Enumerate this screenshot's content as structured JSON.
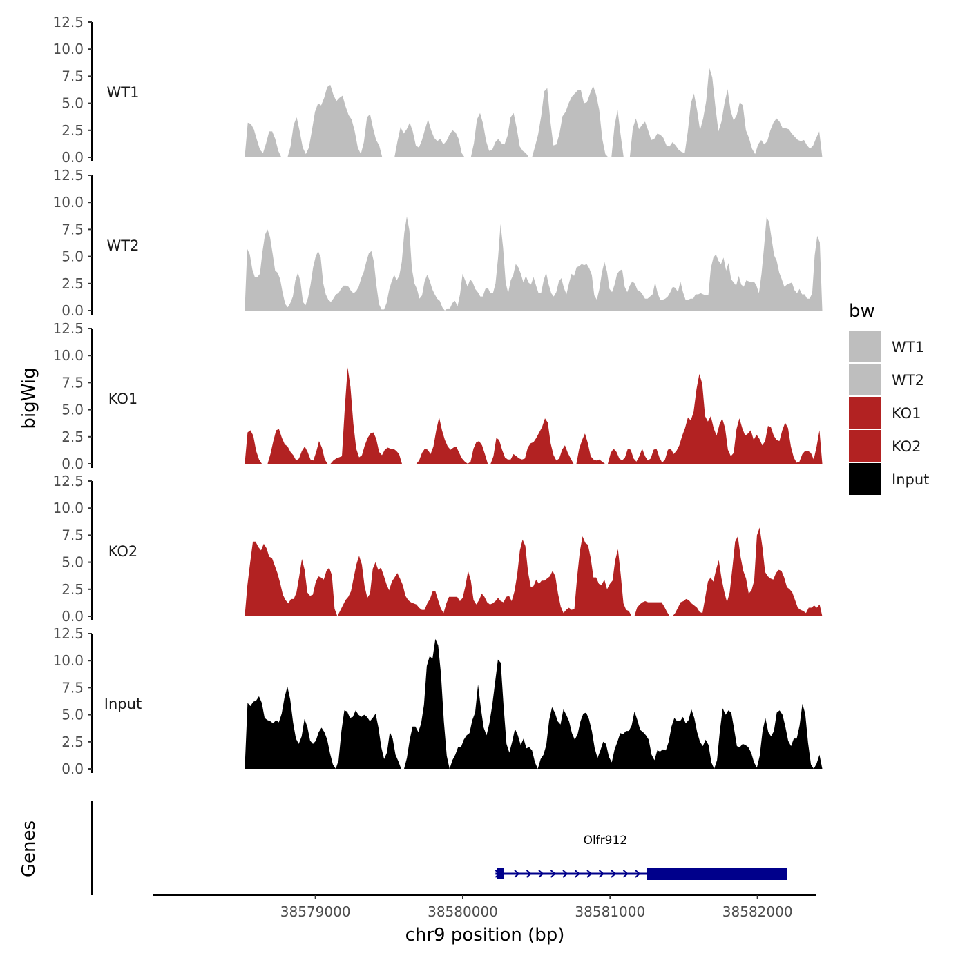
{
  "chart_data": {
    "type": "area",
    "title": "",
    "ylabel": "bigWig",
    "xlabel": "chr9 position (bp)",
    "genes_label": "Genes",
    "ylim": [
      0,
      12.5
    ],
    "y_ticks": [
      "0.0",
      "2.5",
      "5.0",
      "7.5",
      "10.0",
      "12.5"
    ],
    "y_tick_values": [
      0,
      2.5,
      5,
      7.5,
      10,
      12.5
    ],
    "xlim": [
      38577900,
      38582400
    ],
    "x_ticks": [
      "38579000",
      "38580000",
      "38581000",
      "38582000"
    ],
    "x_tick_values": [
      38579000,
      38580000,
      38581000,
      38582000
    ],
    "data_range": [
      38578520,
      38582440
    ],
    "legend": {
      "title": "bw",
      "position": "right",
      "items": [
        {
          "label": "WT1",
          "color": "#BEBEBE"
        },
        {
          "label": "WT2",
          "color": "#BEBEBE"
        },
        {
          "label": "KO1",
          "color": "#B22222"
        },
        {
          "label": "KO2",
          "color": "#B22222"
        },
        {
          "label": "Input",
          "color": "#000000"
        }
      ]
    },
    "series": [
      {
        "name": "WT1",
        "color": "#BEBEBE",
        "values": [
          0,
          3.2,
          3.1,
          2.6,
          1.6,
          0.7,
          0.4,
          1.3,
          2.4,
          2.4,
          1.7,
          0.6,
          0,
          0,
          0,
          1,
          3,
          3.7,
          2.4,
          0.9,
          0.3,
          0.9,
          2.5,
          4.2,
          5,
          4.8,
          5.5,
          6.5,
          6.7,
          5.8,
          5.2,
          5.5,
          5.7,
          4.7,
          3.9,
          3.5,
          2.4,
          0.9,
          0.3,
          1.4,
          3.7,
          4,
          2.7,
          1.6,
          1.1,
          0,
          0,
          0,
          0,
          0,
          1.5,
          2.8,
          2.2,
          2.6,
          3.2,
          2.4,
          1.1,
          0.9,
          1.6,
          2.6,
          3.5,
          2.5,
          1.8,
          1.5,
          1.7,
          1.2,
          1.5,
          2.1,
          2.5,
          2.3,
          1.7,
          0.4,
          0,
          0,
          0,
          1.3,
          3.5,
          4.1,
          3.1,
          1.5,
          0.6,
          0.7,
          1.4,
          1.7,
          1.3,
          1.2,
          2,
          3.7,
          4.1,
          2.7,
          1,
          0.6,
          0.4,
          0,
          0,
          1,
          2.1,
          3.8,
          6.1,
          6.4,
          3.4,
          1.1,
          1.2,
          2.2,
          3.8,
          4.2,
          5,
          5.6,
          5.9,
          6.2,
          6.2,
          5,
          5.1,
          5.9,
          6.6,
          5.8,
          4.4,
          1.7,
          0.3,
          0,
          0,
          2.9,
          4.4,
          2.1,
          0,
          0,
          0,
          2.7,
          3.6,
          2.6,
          3,
          3.3,
          2.5,
          1.6,
          1.7,
          2.2,
          2.1,
          1.8,
          1.1,
          1,
          1.4,
          1.1,
          0.7,
          0.5,
          0.4,
          2.4,
          5,
          5.9,
          4.4,
          2.5,
          3.6,
          5.2,
          8.3,
          7.4,
          4.7,
          2.4,
          3.3,
          5,
          6.3,
          4.3,
          3.4,
          3.9,
          5.1,
          4.8,
          2.5,
          1.8,
          0.8,
          0.3,
          1.2,
          1.6,
          1.2,
          1.5,
          2.5,
          3.2,
          3.6,
          3.3,
          2.7,
          2.7,
          2.6,
          2.2,
          1.9,
          1.6,
          1.5,
          1.6,
          1.1,
          0.8,
          1.1,
          1.8,
          2.4,
          0
        ]
      },
      {
        "name": "WT2",
        "color": "#BEBEBE",
        "values": [
          0,
          5.7,
          5.2,
          3.8,
          3.1,
          3.1,
          3.4,
          5.4,
          7,
          7.5,
          6.8,
          5.3,
          3.7,
          3.5,
          2.9,
          1.6,
          0.6,
          0.3,
          0.7,
          1.3,
          2.8,
          3.5,
          2.7,
          0.8,
          0.5,
          1.2,
          2.4,
          4,
          5,
          5.5,
          4.9,
          2.5,
          1.5,
          1,
          0.8,
          1.1,
          1.5,
          1.6,
          2,
          2.3,
          2.3,
          2.2,
          1.8,
          1.6,
          1.8,
          2.2,
          3,
          3.6,
          4.5,
          5.3,
          5.5,
          4.5,
          2.3,
          0.6,
          0.1,
          0.1,
          0.7,
          1.9,
          2.7,
          3.3,
          2.8,
          3.2,
          4.5,
          7.2,
          8.7,
          7.4,
          3.9,
          2.5,
          2,
          1.1,
          1.4,
          2.7,
          3.3,
          2.8,
          2,
          1.5,
          1.1,
          0.9,
          0.3,
          0,
          0.2,
          0.2,
          0.7,
          0.9,
          0.4,
          1.5,
          3.4,
          2.8,
          2.2,
          2.9,
          2.6,
          2,
          1.7,
          1.3,
          1.3,
          2,
          2.1,
          1.6,
          1.6,
          2.5,
          4.9,
          8,
          5.8,
          2.6,
          1.6,
          2.8,
          3.3,
          4.3,
          4,
          3.4,
          2.6,
          3.2,
          2.6,
          2.4,
          3.1,
          2.3,
          1.6,
          1.6,
          2.8,
          3.5,
          2.4,
          1.6,
          1.3,
          1.7,
          2.7,
          3,
          2.1,
          1.5,
          2.5,
          3.4,
          3.2,
          4,
          4.1,
          4.3,
          4.2,
          4.3,
          3.9,
          3.3,
          1.4,
          1,
          2,
          3.5,
          4.5,
          3.6,
          2,
          1.7,
          2.4,
          3.4,
          3.7,
          3.8,
          2.2,
          1.7,
          2.3,
          2.7,
          2.5,
          1.9,
          1.8,
          1.5,
          1.1,
          1.1,
          1.3,
          1.5,
          2.6,
          1.6,
          1,
          1,
          1.1,
          1.3,
          1.7,
          2.2,
          2.1,
          1.7,
          2.7,
          1.7,
          1,
          1,
          1.1,
          1.1,
          1.5,
          1.5,
          1.6,
          1.5,
          1.4,
          1.4,
          3.9,
          4.9,
          5.2,
          4.6,
          4.3,
          4.9,
          3.7,
          4.4,
          2.9,
          2.6,
          2.3,
          3.2,
          2.4,
          2.2,
          2.8,
          2.7,
          2.6,
          2.7,
          2.3,
          1.6,
          3.4,
          5.9,
          8.6,
          8.2,
          6.6,
          5.1,
          4.6,
          3.5,
          2.9,
          2.2,
          2.4,
          2.5,
          2.6,
          1.9,
          1.6,
          2,
          1.5,
          1.5,
          1.1,
          1.1,
          1.6,
          5.1,
          6.9,
          6.3,
          0
        ]
      },
      {
        "name": "KO1",
        "color": "#B22222",
        "values": [
          0,
          2.9,
          3.1,
          2.6,
          1.2,
          0.4,
          0,
          0,
          0,
          0.9,
          2.1,
          3.1,
          3.2,
          2.4,
          1.8,
          1.6,
          1.1,
          0.8,
          0.3,
          0.5,
          1.2,
          1.6,
          1.1,
          0.4,
          0.3,
          1.1,
          2.1,
          1.5,
          0.4,
          0,
          0,
          0.3,
          0.5,
          0.6,
          0.7,
          5.2,
          8.9,
          7.1,
          3.7,
          1.4,
          0.6,
          0.8,
          1.7,
          2.4,
          2.8,
          2.9,
          2.3,
          1.1,
          0.8,
          1.3,
          1.5,
          1.4,
          1.4,
          1.2,
          0.9,
          0,
          0,
          0,
          0,
          0,
          0,
          0.3,
          1,
          1.4,
          1.3,
          0.9,
          1.6,
          3.1,
          4.3,
          3.1,
          2.2,
          1.6,
          1.3,
          1.5,
          1.6,
          1,
          0.5,
          0.2,
          0,
          0.2,
          1.4,
          2,
          2.1,
          1.7,
          0.9,
          0,
          0,
          0.7,
          2.4,
          2.2,
          1.3,
          0.6,
          0.4,
          0.4,
          0.9,
          0.7,
          0.5,
          0.4,
          0.5,
          1.5,
          1.9,
          2,
          2.4,
          2.9,
          3.4,
          4.2,
          3.8,
          1.9,
          0.8,
          0.3,
          0.5,
          1.3,
          1.7,
          1,
          0.5,
          0,
          0,
          1.4,
          2.2,
          2.8,
          1.9,
          0.7,
          0.4,
          0.3,
          0.4,
          0.2,
          0,
          0,
          1,
          1.4,
          1.1,
          0.5,
          0.3,
          0.6,
          1.4,
          1.3,
          0.5,
          0.2,
          0.7,
          1.4,
          0.7,
          0.3,
          0.5,
          1.3,
          1.4,
          0.6,
          0.1,
          0.4,
          1.3,
          1.4,
          0.9,
          1.2,
          1.7,
          2.6,
          3.3,
          4.3,
          4,
          4.8,
          6.9,
          8.3,
          7.4,
          4.4,
          3.9,
          4.4,
          3.3,
          2.6,
          3.6,
          4.2,
          3.3,
          1.3,
          0.7,
          1,
          3.2,
          4.2,
          3.3,
          2.6,
          2.8,
          3.1,
          2.2,
          2.7,
          2.3,
          1.7,
          2.1,
          3.5,
          3.4,
          2.6,
          2.2,
          2.1,
          3.1,
          3.8,
          3.3,
          1.6,
          0.6,
          0.1,
          0.2,
          0.9,
          1.2,
          1.2,
          1,
          0.4,
          1.6,
          3.1,
          0
        ]
      },
      {
        "name": "KO2",
        "color": "#B22222",
        "values": [
          0,
          2.9,
          5,
          6.9,
          6.9,
          6.4,
          6.1,
          6.7,
          6.3,
          5.5,
          5.4,
          4.7,
          4,
          3.1,
          2,
          1.5,
          1.2,
          1.6,
          1.6,
          2.2,
          3.7,
          5.3,
          4.3,
          2.2,
          1.9,
          2,
          3.1,
          3.7,
          3.6,
          3.4,
          4.2,
          4.5,
          3.8,
          0.7,
          0,
          0.5,
          1,
          1.5,
          1.8,
          2.3,
          3.6,
          4.8,
          5.6,
          4.8,
          2.8,
          1.7,
          2.1,
          4.4,
          5,
          4.3,
          4.5,
          3.8,
          3,
          2.4,
          3.2,
          3.6,
          4,
          3.5,
          2.9,
          1.9,
          1.5,
          1.3,
          1.2,
          1.1,
          0.8,
          0.6,
          0.6,
          1.2,
          1.6,
          2.3,
          2.3,
          1.5,
          0.7,
          0.3,
          1.2,
          1.8,
          1.8,
          1.8,
          1.8,
          1.4,
          1.7,
          2.8,
          4.2,
          3.3,
          1.5,
          1.1,
          1.5,
          2.1,
          1.8,
          1.3,
          1.1,
          1.2,
          1.4,
          1.7,
          1.4,
          1.3,
          1.8,
          1.9,
          1.4,
          2.3,
          3.8,
          6.1,
          7.1,
          6.5,
          4.1,
          2.7,
          2.8,
          3.4,
          3,
          3.3,
          3.3,
          3.5,
          3.7,
          4.2,
          3.7,
          2.1,
          0.9,
          0.3,
          0.6,
          0.8,
          0.6,
          0.7,
          3.6,
          6,
          7.4,
          6.8,
          6.6,
          5.4,
          3.6,
          3.6,
          3,
          2.9,
          3.4,
          2.5,
          3,
          3.3,
          5.2,
          6.2,
          3.9,
          1.2,
          0.6,
          0.5,
          0,
          0,
          0.8,
          1.1,
          1.3,
          1.4,
          1.3,
          1.3,
          1.3,
          1.3,
          1.3,
          1.3,
          0.9,
          0.4,
          0,
          0,
          0.3,
          0.8,
          1.3,
          1.4,
          1.6,
          1.5,
          1.2,
          1,
          0.8,
          0.4,
          0.3,
          1.7,
          3.2,
          3.6,
          3.2,
          4.3,
          5.2,
          3.5,
          2.3,
          1.3,
          2.2,
          4.5,
          6.9,
          7.4,
          5.5,
          4.2,
          3.5,
          2.1,
          2.4,
          3.3,
          7.5,
          8.2,
          6.4,
          4.1,
          3.7,
          3.5,
          3.4,
          4,
          4.3,
          4.2,
          3.6,
          2.7,
          2.5,
          2.2,
          1.5,
          0.8,
          0.6,
          0.5,
          0.3,
          0.8,
          0.8,
          1,
          0.8,
          1.1,
          0
        ]
      },
      {
        "name": "Input",
        "color": "#000000",
        "values": [
          0,
          6.1,
          5.8,
          6.2,
          6.3,
          6.7,
          6.1,
          4.7,
          4.5,
          4.4,
          4.2,
          4.5,
          4.3,
          5.1,
          6.6,
          7.6,
          6.4,
          4.3,
          2.8,
          2.3,
          3,
          4.6,
          3.9,
          2.6,
          2.3,
          2.6,
          3.4,
          3.8,
          3.4,
          2.7,
          1.4,
          0.4,
          0,
          0.8,
          3.5,
          5.4,
          5.3,
          4.7,
          4.8,
          5.4,
          5,
          4.8,
          5,
          4.8,
          4.4,
          4.7,
          5.1,
          3.8,
          2,
          0.9,
          1.5,
          3.4,
          2.8,
          1.3,
          0.7,
          0,
          0,
          1,
          2.7,
          3.9,
          3.9,
          3.4,
          4.2,
          5.9,
          9.5,
          10.4,
          10.2,
          12,
          11.4,
          8.7,
          4.4,
          1.2,
          0,
          0.8,
          1.3,
          2,
          2,
          2.7,
          3.1,
          3.3,
          4.5,
          5.2,
          7.8,
          5.6,
          3.8,
          3.1,
          4.2,
          5.9,
          8,
          10.1,
          9.8,
          5.8,
          2.3,
          1.5,
          2.5,
          3.7,
          3.1,
          2.2,
          2.8,
          1.9,
          2,
          1.7,
          0.6,
          0,
          0.9,
          1.3,
          2.2,
          4.5,
          5.7,
          5.2,
          4.4,
          4.1,
          5.5,
          5,
          4.4,
          3.3,
          2.7,
          3.2,
          4.4,
          5.1,
          5.2,
          4.6,
          3.5,
          1.9,
          1,
          1.7,
          2.5,
          2.3,
          1.1,
          0.6,
          1.8,
          2.5,
          3.3,
          3.2,
          3.5,
          3.5,
          4,
          5.3,
          4.5,
          3.6,
          3.4,
          3.1,
          2.7,
          1.3,
          0.8,
          1.7,
          1.6,
          1.8,
          1.7,
          2.5,
          3.9,
          4.7,
          4.4,
          4.4,
          4.8,
          4.2,
          4.5,
          5.5,
          4.7,
          3.4,
          2.5,
          2.1,
          2.7,
          2.2,
          0.6,
          0,
          0.8,
          3.5,
          5.6,
          5,
          5.4,
          5.2,
          3.7,
          2.1,
          2,
          2.3,
          2.2,
          2,
          1.5,
          0.6,
          0.1,
          1.2,
          3.5,
          4.7,
          3.4,
          3,
          3.5,
          5.2,
          5.4,
          5,
          3.9,
          2.6,
          2.1,
          2.8,
          2.8,
          4,
          6,
          5.1,
          2.4,
          0.4,
          0,
          0.5,
          1.3,
          0
        ]
      }
    ],
    "gene": {
      "name": "Olfr912",
      "strand": "+",
      "start": 38580250,
      "end": 38582200,
      "thick_start": 38580250,
      "thick_end": 38580300,
      "cds_start": 38581250,
      "cds_end": 38582200,
      "color": "#00008B"
    }
  }
}
